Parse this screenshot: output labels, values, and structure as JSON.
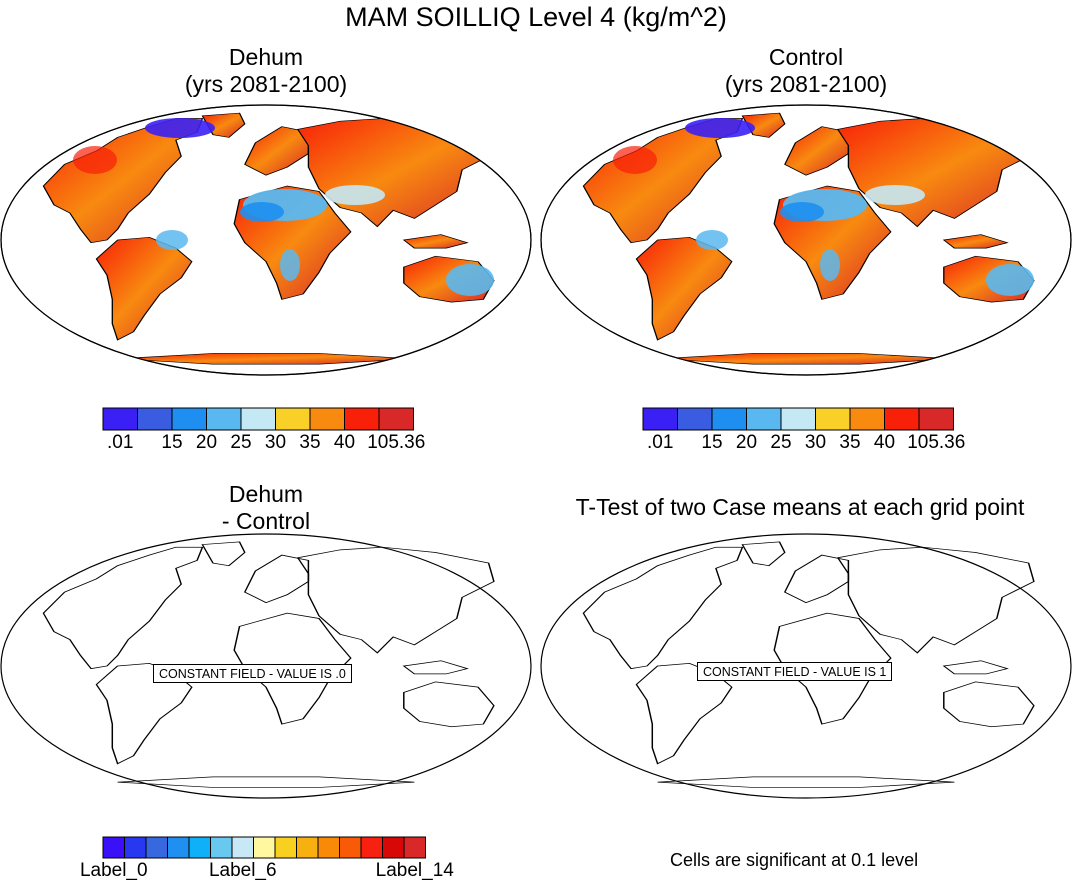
{
  "title": "MAM SOILLIQ Level 4 (kg/m^2)",
  "panels": [
    {
      "id": "dehum",
      "title_line1": "Dehum",
      "title_line2": "(yrs 2081-2100)"
    },
    {
      "id": "control",
      "title_line1": "Control",
      "title_line2": "(yrs 2081-2100)"
    },
    {
      "id": "diff",
      "title_line1": "Dehum",
      "title_line2": " - Control",
      "constant_field_text": "CONSTANT FIELD - VALUE IS .0"
    },
    {
      "id": "ttest",
      "title_line1": "T-Test of two Case means at each grid point",
      "constant_field_text": "CONSTANT FIELD - VALUE IS 1"
    }
  ],
  "colorbar_top": {
    "colors": [
      "#3a20f5",
      "#3a5ce0",
      "#1e8ff0",
      "#5ab8f0",
      "#c5e8f5",
      "#f8d028",
      "#f88a10",
      "#f82008",
      "#d82828"
    ],
    "labels": [
      ".01",
      "15",
      "20",
      "25",
      "30",
      "35",
      "40",
      "105.36"
    ]
  },
  "colorbar_bottom": {
    "colors": [
      "#3a10f8",
      "#2838f0",
      "#3868e0",
      "#2090f0",
      "#10b0f8",
      "#68c8f0",
      "#c8e8f5",
      "#fff8a0",
      "#f8d020",
      "#f8b010",
      "#f88a08",
      "#f85a08",
      "#f82010",
      "#d80808",
      "#d82828"
    ],
    "labels": [
      "Label_0",
      "Label_6",
      "Label_14"
    ]
  },
  "footnote": "Cells are significant at 0.1 level",
  "chart_data": [
    {
      "type": "heatmap",
      "title": "Dehum (yrs 2081-2100)",
      "variable": "MAM SOILLIQ Level 4",
      "units": "kg/m^2",
      "contour_levels": [
        0.01,
        15,
        20,
        25,
        30,
        35,
        40,
        105.36
      ]
    },
    {
      "type": "heatmap",
      "title": "Control (yrs 2081-2100)",
      "variable": "MAM SOILLIQ Level 4",
      "units": "kg/m^2",
      "contour_levels": [
        0.01,
        15,
        20,
        25,
        30,
        35,
        40,
        105.36
      ]
    },
    {
      "type": "heatmap",
      "title": "Dehum - Control",
      "constant_value": 0,
      "legend_labels": [
        "Label_0",
        "Label_6",
        "Label_14"
      ]
    },
    {
      "type": "heatmap",
      "title": "T-Test of two Case means at each grid point",
      "constant_value": 1,
      "significance_level": 0.1
    }
  ]
}
